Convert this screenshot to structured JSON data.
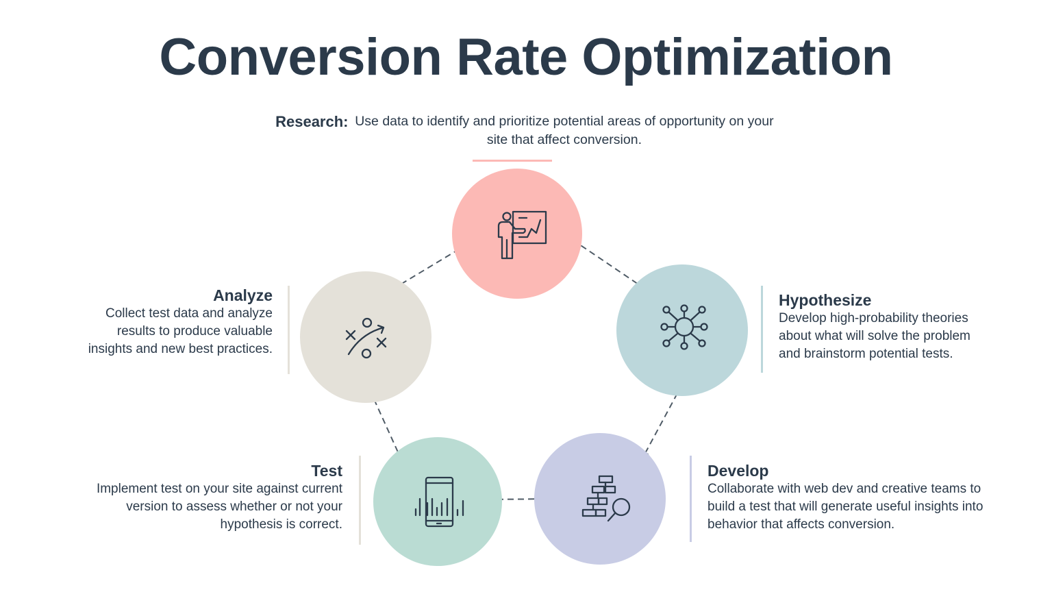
{
  "title": "Conversion Rate Optimization",
  "colors": {
    "text": "#2b3a4a",
    "research": "#fcb9b5",
    "hypothesize": "#bcd7db",
    "develop": "#c8cce5",
    "test": "#badcd3",
    "analyze": "#e4e1d9",
    "arrow": "#4f5b66"
  },
  "steps": {
    "research": {
      "title": "Research:",
      "text": "Use data to identify and prioritize potential areas of opportunity on your site that affect conversion.",
      "icon": "presenter-chart-icon"
    },
    "hypothesize": {
      "title": "Hypothesize",
      "lines": [
        "Develop high-probability theories",
        "about what will solve the problem",
        "and brainstorm potential tests."
      ],
      "icon": "network-hub-icon"
    },
    "develop": {
      "title": "Develop",
      "lines": [
        "Collaborate with web dev and creative teams to",
        "build a test that will generate useful insights into",
        "behavior that affects conversion."
      ],
      "icon": "hierarchy-search-icon"
    },
    "test": {
      "title": "Test",
      "lines": [
        "Implement test on your site against current",
        "version to assess whether or not your",
        "hypothesis is correct."
      ],
      "icon": "mobile-analytics-icon"
    },
    "analyze": {
      "title": "Analyze",
      "lines": [
        "Collect test data and analyze",
        "results to produce valuable",
        "insights and new best practices."
      ],
      "icon": "strategy-play-icon"
    }
  }
}
